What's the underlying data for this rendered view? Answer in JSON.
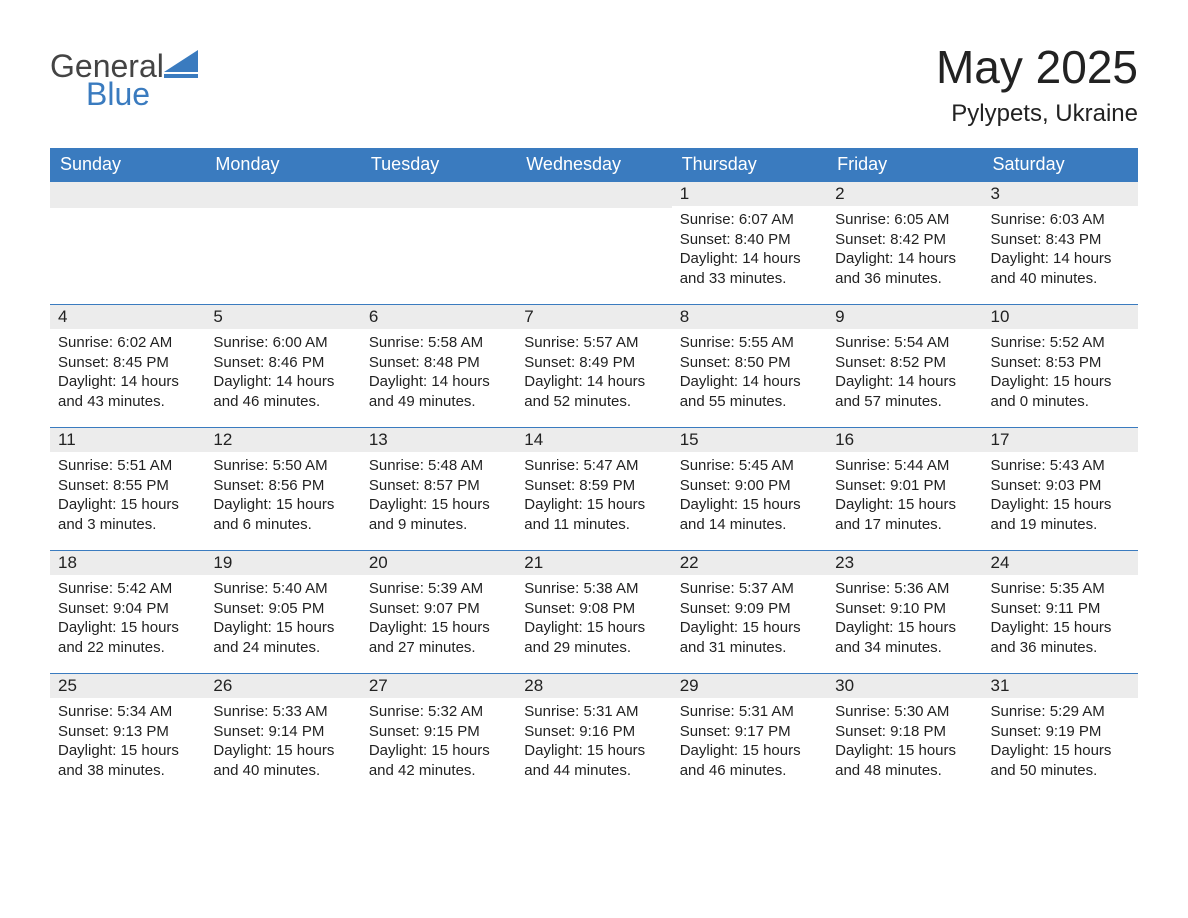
{
  "brand": {
    "word1": "General",
    "word2": "Blue",
    "accent_color": "#3a7bbf",
    "text_color": "#444444"
  },
  "title": {
    "month_year": "May 2025",
    "location": "Pylypets, Ukraine",
    "title_fontsize": 46,
    "location_fontsize": 24
  },
  "calendar": {
    "type": "table",
    "header_bg": "#3a7bbf",
    "header_text_color": "#ffffff",
    "daynum_bg": "#ececec",
    "row_border_color": "#3a7bbf",
    "body_text_color": "#222222",
    "background_color": "#ffffff",
    "cell_fontsize": 15,
    "columns": [
      "Sunday",
      "Monday",
      "Tuesday",
      "Wednesday",
      "Thursday",
      "Friday",
      "Saturday"
    ],
    "weeks": [
      [
        {
          "day": "",
          "sunrise": "",
          "sunset": "",
          "daylight": ""
        },
        {
          "day": "",
          "sunrise": "",
          "sunset": "",
          "daylight": ""
        },
        {
          "day": "",
          "sunrise": "",
          "sunset": "",
          "daylight": ""
        },
        {
          "day": "",
          "sunrise": "",
          "sunset": "",
          "daylight": ""
        },
        {
          "day": "1",
          "sunrise": "Sunrise: 6:07 AM",
          "sunset": "Sunset: 8:40 PM",
          "daylight": "Daylight: 14 hours and 33 minutes."
        },
        {
          "day": "2",
          "sunrise": "Sunrise: 6:05 AM",
          "sunset": "Sunset: 8:42 PM",
          "daylight": "Daylight: 14 hours and 36 minutes."
        },
        {
          "day": "3",
          "sunrise": "Sunrise: 6:03 AM",
          "sunset": "Sunset: 8:43 PM",
          "daylight": "Daylight: 14 hours and 40 minutes."
        }
      ],
      [
        {
          "day": "4",
          "sunrise": "Sunrise: 6:02 AM",
          "sunset": "Sunset: 8:45 PM",
          "daylight": "Daylight: 14 hours and 43 minutes."
        },
        {
          "day": "5",
          "sunrise": "Sunrise: 6:00 AM",
          "sunset": "Sunset: 8:46 PM",
          "daylight": "Daylight: 14 hours and 46 minutes."
        },
        {
          "day": "6",
          "sunrise": "Sunrise: 5:58 AM",
          "sunset": "Sunset: 8:48 PM",
          "daylight": "Daylight: 14 hours and 49 minutes."
        },
        {
          "day": "7",
          "sunrise": "Sunrise: 5:57 AM",
          "sunset": "Sunset: 8:49 PM",
          "daylight": "Daylight: 14 hours and 52 minutes."
        },
        {
          "day": "8",
          "sunrise": "Sunrise: 5:55 AM",
          "sunset": "Sunset: 8:50 PM",
          "daylight": "Daylight: 14 hours and 55 minutes."
        },
        {
          "day": "9",
          "sunrise": "Sunrise: 5:54 AM",
          "sunset": "Sunset: 8:52 PM",
          "daylight": "Daylight: 14 hours and 57 minutes."
        },
        {
          "day": "10",
          "sunrise": "Sunrise: 5:52 AM",
          "sunset": "Sunset: 8:53 PM",
          "daylight": "Daylight: 15 hours and 0 minutes."
        }
      ],
      [
        {
          "day": "11",
          "sunrise": "Sunrise: 5:51 AM",
          "sunset": "Sunset: 8:55 PM",
          "daylight": "Daylight: 15 hours and 3 minutes."
        },
        {
          "day": "12",
          "sunrise": "Sunrise: 5:50 AM",
          "sunset": "Sunset: 8:56 PM",
          "daylight": "Daylight: 15 hours and 6 minutes."
        },
        {
          "day": "13",
          "sunrise": "Sunrise: 5:48 AM",
          "sunset": "Sunset: 8:57 PM",
          "daylight": "Daylight: 15 hours and 9 minutes."
        },
        {
          "day": "14",
          "sunrise": "Sunrise: 5:47 AM",
          "sunset": "Sunset: 8:59 PM",
          "daylight": "Daylight: 15 hours and 11 minutes."
        },
        {
          "day": "15",
          "sunrise": "Sunrise: 5:45 AM",
          "sunset": "Sunset: 9:00 PM",
          "daylight": "Daylight: 15 hours and 14 minutes."
        },
        {
          "day": "16",
          "sunrise": "Sunrise: 5:44 AM",
          "sunset": "Sunset: 9:01 PM",
          "daylight": "Daylight: 15 hours and 17 minutes."
        },
        {
          "day": "17",
          "sunrise": "Sunrise: 5:43 AM",
          "sunset": "Sunset: 9:03 PM",
          "daylight": "Daylight: 15 hours and 19 minutes."
        }
      ],
      [
        {
          "day": "18",
          "sunrise": "Sunrise: 5:42 AM",
          "sunset": "Sunset: 9:04 PM",
          "daylight": "Daylight: 15 hours and 22 minutes."
        },
        {
          "day": "19",
          "sunrise": "Sunrise: 5:40 AM",
          "sunset": "Sunset: 9:05 PM",
          "daylight": "Daylight: 15 hours and 24 minutes."
        },
        {
          "day": "20",
          "sunrise": "Sunrise: 5:39 AM",
          "sunset": "Sunset: 9:07 PM",
          "daylight": "Daylight: 15 hours and 27 minutes."
        },
        {
          "day": "21",
          "sunrise": "Sunrise: 5:38 AM",
          "sunset": "Sunset: 9:08 PM",
          "daylight": "Daylight: 15 hours and 29 minutes."
        },
        {
          "day": "22",
          "sunrise": "Sunrise: 5:37 AM",
          "sunset": "Sunset: 9:09 PM",
          "daylight": "Daylight: 15 hours and 31 minutes."
        },
        {
          "day": "23",
          "sunrise": "Sunrise: 5:36 AM",
          "sunset": "Sunset: 9:10 PM",
          "daylight": "Daylight: 15 hours and 34 minutes."
        },
        {
          "day": "24",
          "sunrise": "Sunrise: 5:35 AM",
          "sunset": "Sunset: 9:11 PM",
          "daylight": "Daylight: 15 hours and 36 minutes."
        }
      ],
      [
        {
          "day": "25",
          "sunrise": "Sunrise: 5:34 AM",
          "sunset": "Sunset: 9:13 PM",
          "daylight": "Daylight: 15 hours and 38 minutes."
        },
        {
          "day": "26",
          "sunrise": "Sunrise: 5:33 AM",
          "sunset": "Sunset: 9:14 PM",
          "daylight": "Daylight: 15 hours and 40 minutes."
        },
        {
          "day": "27",
          "sunrise": "Sunrise: 5:32 AM",
          "sunset": "Sunset: 9:15 PM",
          "daylight": "Daylight: 15 hours and 42 minutes."
        },
        {
          "day": "28",
          "sunrise": "Sunrise: 5:31 AM",
          "sunset": "Sunset: 9:16 PM",
          "daylight": "Daylight: 15 hours and 44 minutes."
        },
        {
          "day": "29",
          "sunrise": "Sunrise: 5:31 AM",
          "sunset": "Sunset: 9:17 PM",
          "daylight": "Daylight: 15 hours and 46 minutes."
        },
        {
          "day": "30",
          "sunrise": "Sunrise: 5:30 AM",
          "sunset": "Sunset: 9:18 PM",
          "daylight": "Daylight: 15 hours and 48 minutes."
        },
        {
          "day": "31",
          "sunrise": "Sunrise: 5:29 AM",
          "sunset": "Sunset: 9:19 PM",
          "daylight": "Daylight: 15 hours and 50 minutes."
        }
      ]
    ]
  }
}
